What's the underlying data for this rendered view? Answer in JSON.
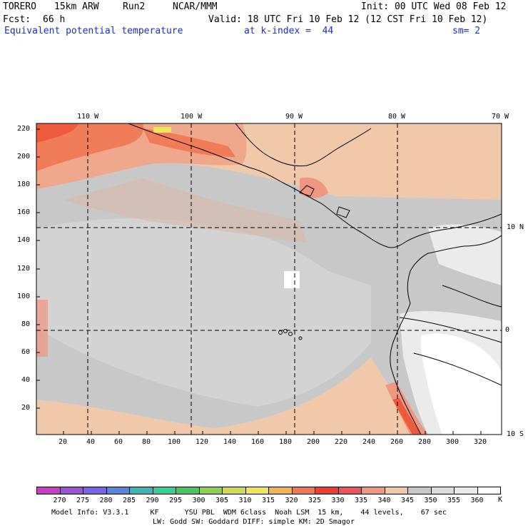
{
  "header": {
    "model": "TORERO",
    "resolution": "15km ARW",
    "run": "Run2",
    "org": "NCAR/MMM",
    "init": "Init: 00 UTC Wed 08 Feb 12",
    "fcst_label": "Fcst:",
    "fcst_value": "66 h",
    "valid": "Valid: 18 UTC Fri 10 Feb 12 (12 CST Fri 10 Feb 12)",
    "field": "Equivalent potential temperature",
    "level": "at k-index =  44",
    "smoothing": "sm= 2"
  },
  "map": {
    "lon_labels": [
      "110 W",
      "100 W",
      "90 W",
      "80 W",
      "70 W"
    ],
    "lat_labels": [
      "10 N",
      "0",
      "10 S"
    ],
    "y_ticks": [
      "220",
      "200",
      "180",
      "160",
      "140",
      "120",
      "100",
      "80",
      "60",
      "40",
      "20"
    ],
    "x_ticks": [
      "20",
      "40",
      "60",
      "80",
      "100",
      "120",
      "140",
      "160",
      "180",
      "200",
      "220",
      "240",
      "260",
      "280",
      "300",
      "320"
    ]
  },
  "colorbar": {
    "colors": [
      "#c83cc8",
      "#a050d2",
      "#7864e6",
      "#5a82dc",
      "#3cb4b4",
      "#32d296",
      "#46c85a",
      "#8cd250",
      "#d2dc50",
      "#f0e65a",
      "#f0b450",
      "#f07850",
      "#f03c32",
      "#f0505a",
      "#f09682",
      "#f0c8aa",
      "#c8c8c8",
      "#dcdcdc",
      "#ebebeb",
      "#ffffff"
    ],
    "labels": [
      "270",
      "275",
      "280",
      "285",
      "290",
      "295",
      "300",
      "305",
      "310",
      "315",
      "320",
      "325",
      "330",
      "335",
      "340",
      "345",
      "350",
      "355",
      "360"
    ],
    "unit": "K"
  },
  "footer": {
    "line1": "Model Info: V3.3.1     KF      YSU PBL  WDM 6class  Noah LSM  15 km,    44 levels,    67 sec",
    "line2": "LW: Godd SW: Goddard DIFF: simple KM: 2D Smagor"
  }
}
